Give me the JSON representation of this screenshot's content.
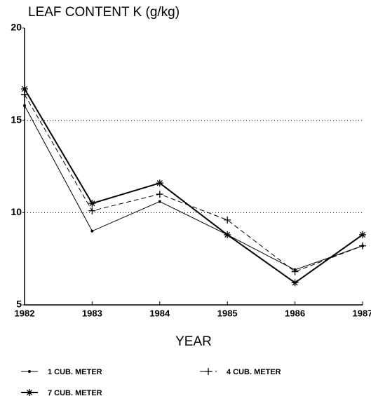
{
  "chart_data": {
    "type": "line",
    "title": "LEAF CONTENT K (g/kg)",
    "x_label": "YEAR",
    "x": [
      1982,
      1983,
      1984,
      1985,
      1986,
      1987
    ],
    "xlim": [
      1982,
      1987
    ],
    "xticks": [
      1982,
      1983,
      1984,
      1985,
      1986,
      1987
    ],
    "ylim": [
      5,
      20
    ],
    "yticks": [
      5,
      10,
      15,
      20
    ],
    "grid": true,
    "legend": "bottom",
    "series": [
      {
        "name": "1 CUB. METER",
        "color": "#000000",
        "marker": "dot",
        "dashed": false,
        "width": 1,
        "values": [
          15.8,
          9.0,
          10.6,
          8.8,
          6.9,
          8.2
        ]
      },
      {
        "name": "4 CUB. METER",
        "color": "#000000",
        "marker": "plus",
        "dashed": true,
        "width": 1,
        "values": [
          16.4,
          10.1,
          11.0,
          9.6,
          6.8,
          8.2
        ]
      },
      {
        "name": "7 CUB. METER",
        "color": "#000000",
        "marker": "star",
        "dashed": false,
        "width": 2,
        "values": [
          16.7,
          10.5,
          11.6,
          8.8,
          6.2,
          8.8
        ]
      }
    ]
  }
}
